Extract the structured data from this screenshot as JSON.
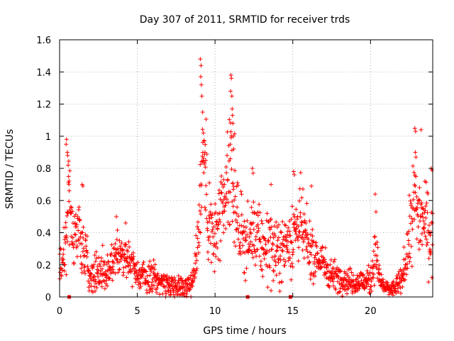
{
  "chart_data": {
    "type": "scatter",
    "title": "Day 307 of 2011, SRMTID for receiver trds",
    "xlabel": "GPS time / hours",
    "ylabel": "SRMTID / TECUs",
    "xlim": [
      0,
      24
    ],
    "ylim": [
      0,
      1.6
    ],
    "x_ticks": [
      0,
      5,
      10,
      15,
      20
    ],
    "y_ticks": [
      0,
      0.2,
      0.4,
      0.6,
      0.8,
      1,
      1.2,
      1.4,
      1.6
    ],
    "y_tick_labels": [
      "0",
      "0.2",
      "0.4",
      "0.6",
      "0.8",
      "1",
      "1.2",
      "1.4",
      "1.6"
    ],
    "grid": true,
    "marker": "+",
    "series": [
      {
        "name": "SRMTID",
        "color": "#ff0000",
        "profile": [
          [
            0.0,
            0.2,
            0.12
          ],
          [
            0.3,
            0.3,
            0.14
          ],
          [
            0.5,
            0.42,
            0.2
          ],
          [
            0.6,
            0.75,
            0.25
          ],
          [
            0.8,
            0.35,
            0.15
          ],
          [
            1.2,
            0.45,
            0.15
          ],
          [
            1.5,
            0.3,
            0.15
          ],
          [
            2.0,
            0.15,
            0.1
          ],
          [
            3.0,
            0.16,
            0.1
          ],
          [
            3.6,
            0.25,
            0.12
          ],
          [
            4.0,
            0.28,
            0.12
          ],
          [
            4.5,
            0.24,
            0.1
          ],
          [
            5.0,
            0.14,
            0.08
          ],
          [
            6.0,
            0.11,
            0.08
          ],
          [
            7.0,
            0.08,
            0.06
          ],
          [
            8.0,
            0.06,
            0.05
          ],
          [
            8.6,
            0.1,
            0.08
          ],
          [
            9.0,
            0.5,
            0.25
          ],
          [
            9.2,
            1.0,
            0.35
          ],
          [
            9.5,
            0.5,
            0.25
          ],
          [
            10.0,
            0.35,
            0.2
          ],
          [
            10.6,
            0.55,
            0.2
          ],
          [
            11.0,
            0.8,
            0.35
          ],
          [
            11.5,
            0.45,
            0.2
          ],
          [
            12.0,
            0.32,
            0.15
          ],
          [
            12.5,
            0.4,
            0.2
          ],
          [
            13.0,
            0.3,
            0.15
          ],
          [
            13.5,
            0.35,
            0.2
          ],
          [
            14.0,
            0.25,
            0.15
          ],
          [
            15.0,
            0.4,
            0.2
          ],
          [
            15.5,
            0.45,
            0.2
          ],
          [
            16.0,
            0.3,
            0.15
          ],
          [
            16.5,
            0.25,
            0.12
          ],
          [
            17.0,
            0.2,
            0.1
          ],
          [
            17.5,
            0.14,
            0.08
          ],
          [
            18.0,
            0.12,
            0.07
          ],
          [
            19.0,
            0.09,
            0.06
          ],
          [
            20.0,
            0.1,
            0.07
          ],
          [
            20.3,
            0.3,
            0.15
          ],
          [
            20.6,
            0.1,
            0.06
          ],
          [
            21.0,
            0.05,
            0.04
          ],
          [
            21.5,
            0.05,
            0.04
          ],
          [
            22.0,
            0.1,
            0.07
          ],
          [
            22.4,
            0.3,
            0.15
          ],
          [
            22.8,
            0.6,
            0.25
          ],
          [
            23.2,
            0.5,
            0.2
          ],
          [
            23.6,
            0.45,
            0.2
          ],
          [
            24.0,
            0.35,
            0.2
          ]
        ],
        "spikes": [
          [
            9.05,
            1.48
          ],
          [
            9.1,
            1.44
          ],
          [
            9.08,
            1.37
          ],
          [
            9.12,
            1.32
          ],
          [
            9.15,
            1.25
          ],
          [
            9.2,
            1.15
          ],
          [
            9.25,
            1.02
          ],
          [
            9.3,
            0.97
          ],
          [
            9.35,
            0.9
          ],
          [
            9.4,
            0.85
          ],
          [
            11.02,
            1.38
          ],
          [
            11.05,
            1.36
          ],
          [
            11.0,
            1.28
          ],
          [
            11.08,
            1.25
          ],
          [
            11.1,
            1.17
          ],
          [
            11.12,
            1.13
          ],
          [
            11.15,
            1.08
          ],
          [
            11.18,
            1.0
          ],
          [
            11.2,
            0.92
          ],
          [
            10.98,
            0.95
          ],
          [
            0.45,
            0.98
          ],
          [
            0.42,
            0.95
          ],
          [
            0.5,
            0.9
          ],
          [
            0.52,
            0.88
          ],
          [
            0.55,
            0.82
          ],
          [
            0.58,
            0.75
          ],
          [
            0.6,
            0.7
          ],
          [
            0.62,
            0.66
          ],
          [
            1.45,
            0.7
          ],
          [
            1.5,
            0.69
          ],
          [
            22.85,
            1.05
          ],
          [
            22.9,
            1.03
          ],
          [
            23.25,
            1.04
          ],
          [
            22.88,
            0.9
          ],
          [
            22.92,
            0.87
          ],
          [
            23.9,
            0.8
          ],
          [
            23.95,
            0.79
          ],
          [
            23.5,
            0.72
          ],
          [
            20.3,
            0.64
          ],
          [
            20.35,
            0.53
          ],
          [
            12.4,
            0.8
          ],
          [
            12.45,
            0.77
          ],
          [
            15.05,
            0.78
          ],
          [
            15.1,
            0.76
          ],
          [
            16.2,
            0.69
          ],
          [
            10.55,
            0.73
          ],
          [
            10.6,
            0.7
          ],
          [
            13.6,
            0.7
          ],
          [
            3.65,
            0.5
          ],
          [
            4.25,
            0.46
          ]
        ],
        "zero_markers": [
          0.62,
          12.1,
          14.85
        ]
      }
    ]
  }
}
